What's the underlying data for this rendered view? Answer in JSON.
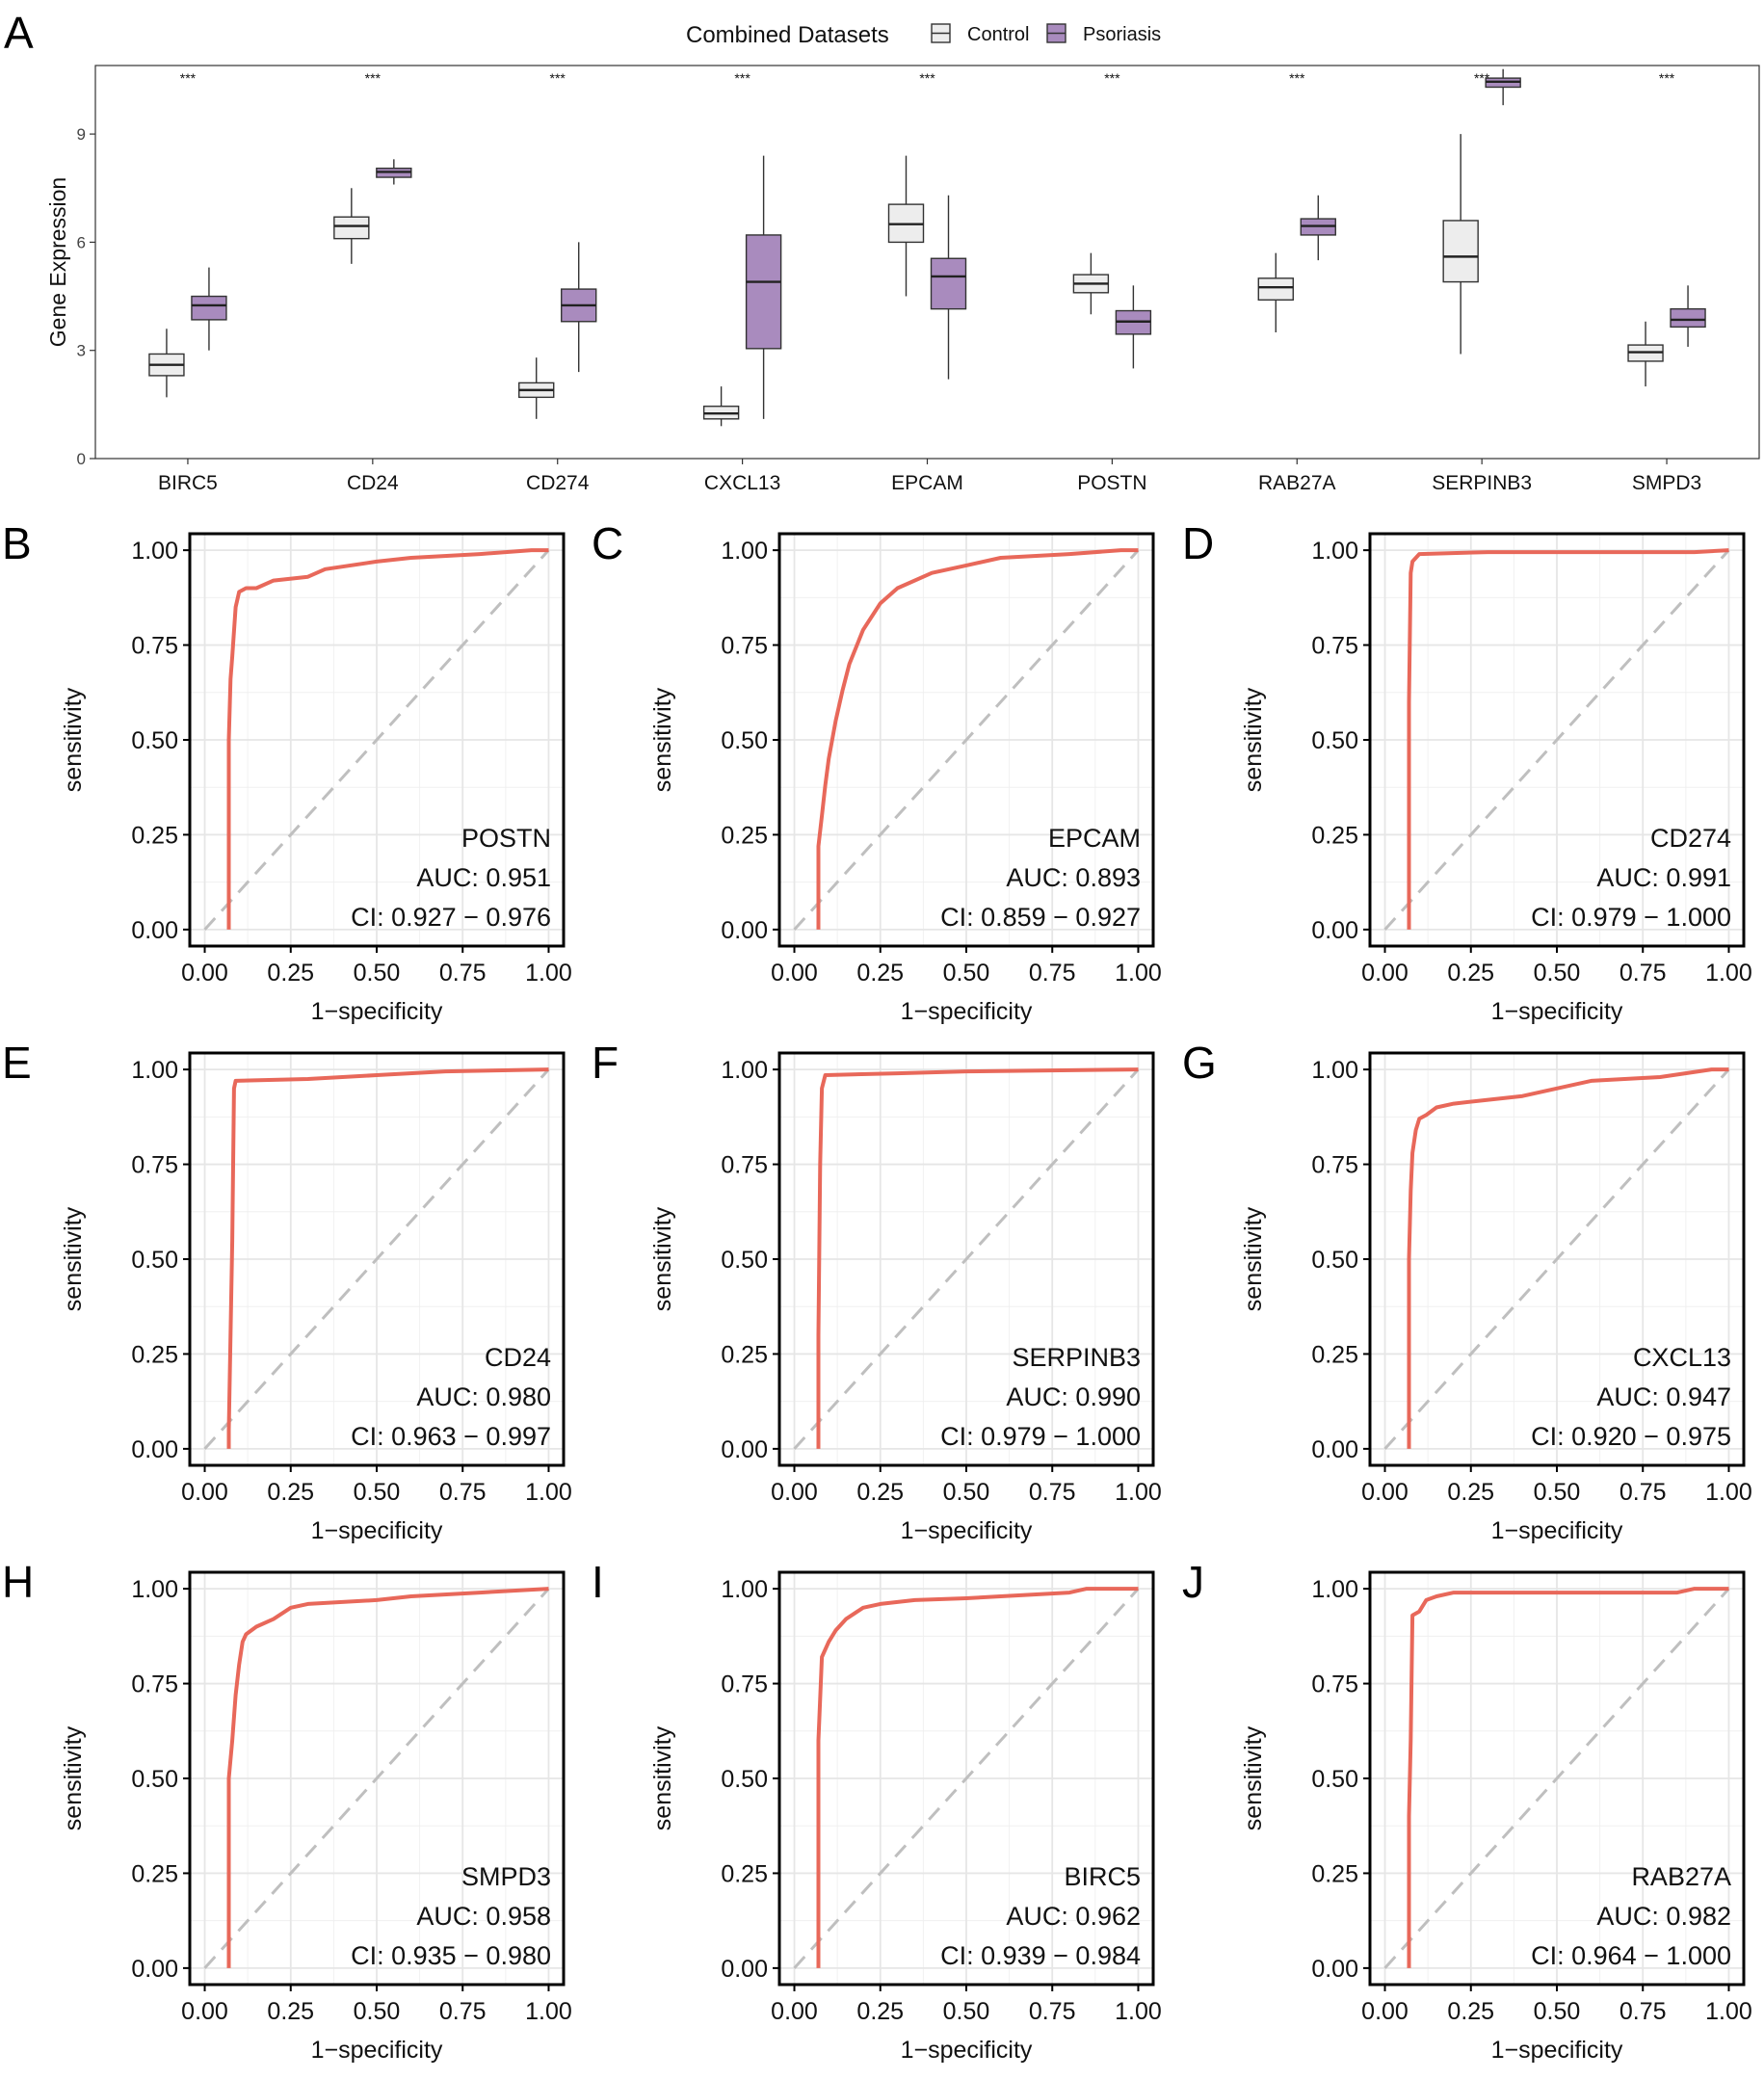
{
  "chart_data": [
    {
      "panel": "A",
      "type": "boxplot",
      "legend": {
        "title": "Combined Datasets",
        "entries": [
          "Control",
          "Psoriasis"
        ],
        "colors": [
          "#EDEDED",
          "#A98BBE"
        ],
        "placement": "top"
      },
      "ylabel": "Gene Expression",
      "ylim": [
        0,
        10.9
      ],
      "yticks": [
        0,
        3,
        6,
        9
      ],
      "categories": [
        "BIRC5",
        "CD24",
        "CD274",
        "CXCL13",
        "EPCAM",
        "POSTN",
        "RAB27A",
        "SERPINB3",
        "SMPD3"
      ],
      "significance": [
        "***",
        "***",
        "***",
        "***",
        "***",
        "***",
        "***",
        "***",
        "***"
      ],
      "series": [
        {
          "name": "Control",
          "boxes": [
            {
              "min": 1.7,
              "q1": 2.3,
              "median": 2.6,
              "q3": 2.9,
              "max": 3.6
            },
            {
              "min": 5.4,
              "q1": 6.1,
              "median": 6.45,
              "q3": 6.7,
              "max": 7.5
            },
            {
              "min": 1.1,
              "q1": 1.7,
              "median": 1.9,
              "q3": 2.1,
              "max": 2.8
            },
            {
              "min": 0.9,
              "q1": 1.1,
              "median": 1.25,
              "q3": 1.45,
              "max": 2.0
            },
            {
              "min": 4.5,
              "q1": 6.0,
              "median": 6.5,
              "q3": 7.05,
              "max": 8.4
            },
            {
              "min": 4.0,
              "q1": 4.6,
              "median": 4.85,
              "q3": 5.1,
              "max": 5.7
            },
            {
              "min": 3.5,
              "q1": 4.4,
              "median": 4.75,
              "q3": 5.0,
              "max": 5.7
            },
            {
              "min": 2.9,
              "q1": 4.9,
              "median": 5.6,
              "q3": 6.6,
              "max": 9.0
            },
            {
              "min": 2.0,
              "q1": 2.7,
              "median": 2.95,
              "q3": 3.15,
              "max": 3.8
            }
          ]
        },
        {
          "name": "Psoriasis",
          "boxes": [
            {
              "min": 3.0,
              "q1": 3.85,
              "median": 4.25,
              "q3": 4.5,
              "max": 5.3
            },
            {
              "min": 7.6,
              "q1": 7.8,
              "median": 7.95,
              "q3": 8.05,
              "max": 8.3
            },
            {
              "min": 2.4,
              "q1": 3.8,
              "median": 4.25,
              "q3": 4.7,
              "max": 6.0
            },
            {
              "min": 1.1,
              "q1": 3.05,
              "median": 4.9,
              "q3": 6.2,
              "max": 8.4
            },
            {
              "min": 2.2,
              "q1": 4.15,
              "median": 5.05,
              "q3": 5.55,
              "max": 7.3
            },
            {
              "min": 2.5,
              "q1": 3.45,
              "median": 3.8,
              "q3": 4.1,
              "max": 4.8
            },
            {
              "min": 5.5,
              "q1": 6.2,
              "median": 6.45,
              "q3": 6.65,
              "max": 7.3
            },
            {
              "min": 9.8,
              "q1": 10.3,
              "median": 10.45,
              "q3": 10.55,
              "max": 10.8
            },
            {
              "min": 3.1,
              "q1": 3.65,
              "median": 3.85,
              "q3": 4.15,
              "max": 4.8
            }
          ]
        }
      ]
    },
    {
      "panel": "B",
      "type": "line",
      "subtype": "roc",
      "gene": "POSTN",
      "auc_label": "AUC: 0.951",
      "ci_label": "CI: 0.927 − 0.976",
      "xlabel": "1−specificity",
      "ylabel": "sensitivity",
      "xlim": [
        0,
        1
      ],
      "ylim": [
        0,
        1
      ],
      "x": [
        0.07,
        0.07,
        0.075,
        0.08,
        0.09,
        0.1,
        0.12,
        0.15,
        0.2,
        0.3,
        0.35,
        0.5,
        0.6,
        0.8,
        0.95,
        1.0
      ],
      "y": [
        0.0,
        0.5,
        0.66,
        0.72,
        0.85,
        0.89,
        0.9,
        0.9,
        0.92,
        0.93,
        0.95,
        0.97,
        0.98,
        0.99,
        1.0,
        1.0
      ]
    },
    {
      "panel": "C",
      "type": "line",
      "subtype": "roc",
      "gene": "EPCAM",
      "auc_label": "AUC: 0.893",
      "ci_label": "CI: 0.859 − 0.927",
      "xlabel": "1−specificity",
      "ylabel": "sensitivity",
      "xlim": [
        0,
        1
      ],
      "ylim": [
        0,
        1
      ],
      "x": [
        0.07,
        0.07,
        0.08,
        0.09,
        0.1,
        0.12,
        0.14,
        0.16,
        0.2,
        0.25,
        0.3,
        0.4,
        0.5,
        0.6,
        0.8,
        0.95,
        1.0
      ],
      "y": [
        0.0,
        0.22,
        0.3,
        0.38,
        0.45,
        0.55,
        0.63,
        0.7,
        0.79,
        0.86,
        0.9,
        0.94,
        0.96,
        0.98,
        0.99,
        1.0,
        1.0
      ]
    },
    {
      "panel": "D",
      "type": "line",
      "subtype": "roc",
      "gene": "CD274",
      "auc_label": "AUC: 0.991",
      "ci_label": "CI: 0.979 − 1.000",
      "xlabel": "1−specificity",
      "ylabel": "sensitivity",
      "xlim": [
        0,
        1
      ],
      "ylim": [
        0,
        1
      ],
      "x": [
        0.07,
        0.07,
        0.075,
        0.08,
        0.1,
        0.3,
        0.9,
        1.0
      ],
      "y": [
        0.0,
        0.6,
        0.94,
        0.97,
        0.99,
        0.995,
        0.995,
        1.0
      ]
    },
    {
      "panel": "E",
      "type": "line",
      "subtype": "roc",
      "gene": "CD24",
      "auc_label": "AUC: 0.980",
      "ci_label": "CI: 0.963 − 0.997",
      "xlabel": "1−specificity",
      "ylabel": "sensitivity",
      "xlim": [
        0,
        1
      ],
      "ylim": [
        0,
        1
      ],
      "x": [
        0.07,
        0.07,
        0.08,
        0.085,
        0.09,
        0.3,
        0.5,
        0.7,
        1.0
      ],
      "y": [
        0.0,
        0.05,
        0.55,
        0.95,
        0.97,
        0.975,
        0.985,
        0.995,
        1.0
      ]
    },
    {
      "panel": "F",
      "type": "line",
      "subtype": "roc",
      "gene": "SERPINB3",
      "auc_label": "AUC: 0.990",
      "ci_label": "CI: 0.979 − 1.000",
      "xlabel": "1−specificity",
      "ylabel": "sensitivity",
      "xlim": [
        0,
        1
      ],
      "ylim": [
        0,
        1
      ],
      "x": [
        0.07,
        0.07,
        0.075,
        0.08,
        0.09,
        0.3,
        0.5,
        1.0
      ],
      "y": [
        0.0,
        0.3,
        0.75,
        0.95,
        0.985,
        0.99,
        0.995,
        1.0
      ]
    },
    {
      "panel": "G",
      "type": "line",
      "subtype": "roc",
      "gene": "CXCL13",
      "auc_label": "AUC: 0.947",
      "ci_label": "CI: 0.920 − 0.975",
      "xlabel": "1−specificity",
      "ylabel": "sensitivity",
      "xlim": [
        0,
        1
      ],
      "ylim": [
        0,
        1
      ],
      "x": [
        0.07,
        0.07,
        0.075,
        0.08,
        0.09,
        0.1,
        0.12,
        0.15,
        0.2,
        0.3,
        0.4,
        0.5,
        0.6,
        0.8,
        0.95,
        1.0
      ],
      "y": [
        0.0,
        0.5,
        0.68,
        0.78,
        0.84,
        0.87,
        0.88,
        0.9,
        0.91,
        0.92,
        0.93,
        0.95,
        0.97,
        0.98,
        1.0,
        1.0
      ]
    },
    {
      "panel": "H",
      "type": "line",
      "subtype": "roc",
      "gene": "SMPD3",
      "auc_label": "AUC: 0.958",
      "ci_label": "CI: 0.935 − 0.980",
      "xlabel": "1−specificity",
      "ylabel": "sensitivity",
      "xlim": [
        0,
        1
      ],
      "ylim": [
        0,
        1
      ],
      "x": [
        0.07,
        0.07,
        0.08,
        0.09,
        0.1,
        0.11,
        0.12,
        0.15,
        0.2,
        0.25,
        0.3,
        0.5,
        0.6,
        0.8,
        1.0
      ],
      "y": [
        0.0,
        0.5,
        0.6,
        0.72,
        0.8,
        0.86,
        0.88,
        0.9,
        0.92,
        0.95,
        0.96,
        0.97,
        0.98,
        0.99,
        1.0
      ]
    },
    {
      "panel": "I",
      "type": "line",
      "subtype": "roc",
      "gene": "BIRC5",
      "auc_label": "AUC: 0.962",
      "ci_label": "CI: 0.939 − 0.984",
      "xlabel": "1−specificity",
      "ylabel": "sensitivity",
      "xlim": [
        0,
        1
      ],
      "ylim": [
        0,
        1
      ],
      "x": [
        0.07,
        0.07,
        0.08,
        0.1,
        0.12,
        0.15,
        0.2,
        0.25,
        0.35,
        0.5,
        0.6,
        0.8,
        0.85,
        1.0
      ],
      "y": [
        0.0,
        0.6,
        0.82,
        0.86,
        0.89,
        0.92,
        0.95,
        0.96,
        0.97,
        0.975,
        0.98,
        0.99,
        1.0,
        1.0
      ]
    },
    {
      "panel": "J",
      "type": "line",
      "subtype": "roc",
      "gene": "RAB27A",
      "auc_label": "AUC: 0.982",
      "ci_label": "CI: 0.964 − 1.000",
      "xlabel": "1−specificity",
      "ylabel": "sensitivity",
      "xlim": [
        0,
        1
      ],
      "ylim": [
        0,
        1
      ],
      "x": [
        0.07,
        0.07,
        0.075,
        0.08,
        0.1,
        0.12,
        0.15,
        0.2,
        0.5,
        0.85,
        0.9,
        1.0
      ],
      "y": [
        0.0,
        0.4,
        0.6,
        0.93,
        0.94,
        0.97,
        0.98,
        0.99,
        0.99,
        0.99,
        1.0,
        1.0
      ]
    }
  ],
  "roc_ticks": [
    "0.00",
    "0.25",
    "0.50",
    "0.75",
    "1.00"
  ],
  "colors": {
    "roc_line": "#E8685A",
    "diagonal": "#BFBFBF",
    "grid": "#E6E6E6",
    "axis": "#000000",
    "box_border": "#333333"
  }
}
